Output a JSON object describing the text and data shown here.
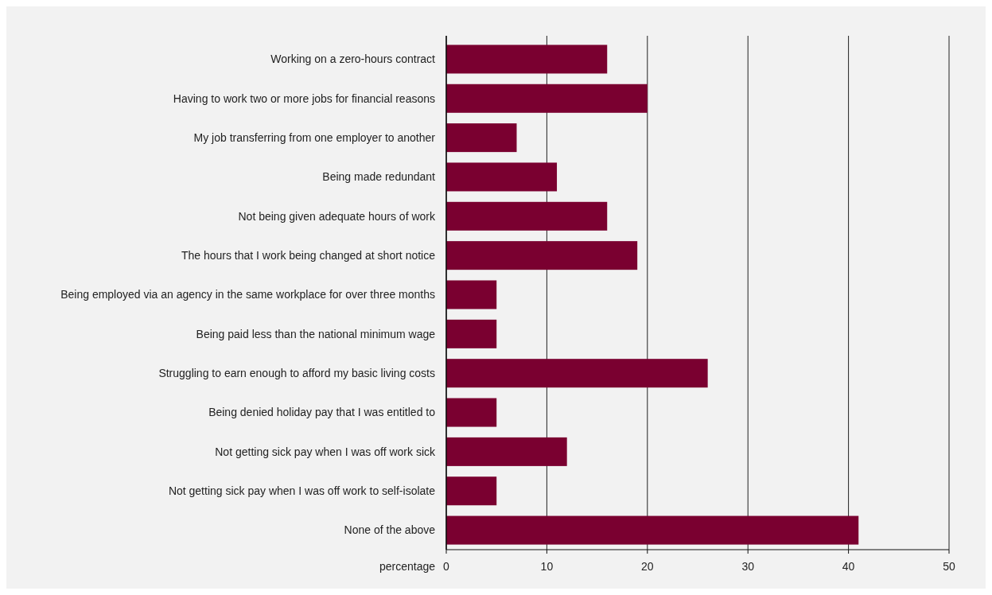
{
  "chart_data": {
    "type": "bar",
    "orientation": "horizontal",
    "xlabel": "percentage",
    "categories": [
      "Working on a zero-hours contract",
      "Having to work two or more jobs for financial reasons",
      "My job transferring from one employer to another",
      "Being made redundant",
      "Not being given adequate hours of work",
      "The hours that I work being changed at short notice",
      "Being employed via an agency in the same workplace for over three months",
      "Being paid less than the national minimum wage",
      "Struggling to earn enough to afford my basic living costs",
      "Being denied holiday pay that I was entitled to",
      "Not getting sick pay when I was off work sick",
      "Not getting sick pay when I was off work to self-isolate",
      "None of the above"
    ],
    "values": [
      16,
      20,
      7,
      11,
      16,
      19,
      5,
      5,
      26,
      5,
      12,
      5,
      41
    ],
    "color": "#7a0030",
    "xlim": [
      0,
      50
    ],
    "xticks": [
      0,
      10,
      20,
      30,
      40,
      50
    ],
    "grid": "x"
  }
}
